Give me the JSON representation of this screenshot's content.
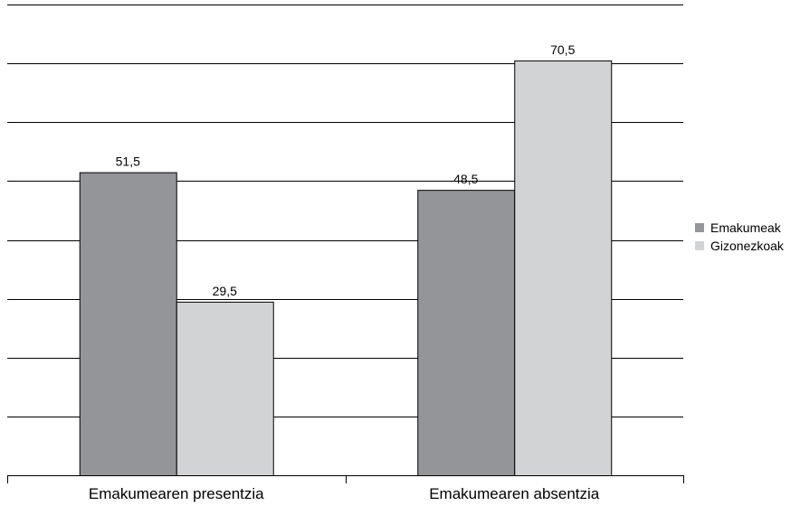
{
  "chart_data": {
    "type": "bar",
    "categories": [
      "Emakumearen presentzia",
      "Emakumearen absentzia"
    ],
    "series": [
      {
        "name": "Emakumeak",
        "values": [
          51.5,
          48.5
        ],
        "color": "#939598",
        "labels": [
          "51,5",
          "48,5"
        ]
      },
      {
        "name": "Gizonezkoak",
        "values": [
          29.5,
          70.5
        ],
        "color": "#d1d3d4",
        "labels": [
          "29,5",
          "70,5"
        ]
      }
    ],
    "ylim": [
      0,
      80
    ],
    "y_gridline_step": 10,
    "grid": true,
    "legend_position": "right"
  }
}
